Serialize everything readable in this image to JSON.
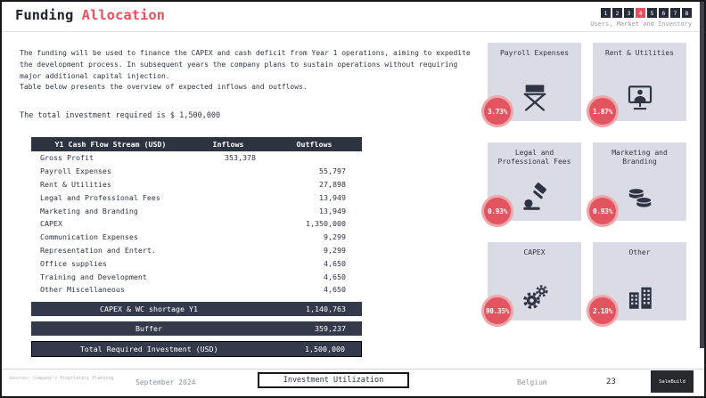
{
  "header": {
    "title_prefix": "Funding",
    "title_accent": "Allocation",
    "pages": [
      "1",
      "2",
      "3",
      "4",
      "5",
      "6",
      "7",
      "8"
    ],
    "active_page": "4",
    "section_label": "Users, Market and Inventory"
  },
  "intro": {
    "paragraph": "The funding will be used to finance the CAPEX and cash deficit from Year 1 operations, aiming to expedite the development process. In subsequent years the company plans to sustain operations without requiring major additional capital injection.",
    "paragraph2": "Table below presents the overview of expected inflows and outflows.",
    "total_line": "The total investment required is $ 1,500,000"
  },
  "table": {
    "headers": [
      "Y1 Cash Flow Stream (USD)",
      "Inflows",
      "Outflows"
    ],
    "rows": [
      {
        "label": "Gross Profit",
        "inflows": "353,378",
        "outflows": ""
      },
      {
        "label": "Payroll Expenses",
        "inflows": "",
        "outflows": "55,797"
      },
      {
        "label": "Rent & Utilities",
        "inflows": "",
        "outflows": "27,898"
      },
      {
        "label": "Legal and Professional Fees",
        "inflows": "",
        "outflows": "13,949"
      },
      {
        "label": "Marketing and Branding",
        "inflows": "",
        "outflows": "13,949"
      },
      {
        "label": "CAPEX",
        "inflows": "",
        "outflows": "1,350,000"
      },
      {
        "label": "Communication Expenses",
        "inflows": "",
        "outflows": "9,299"
      },
      {
        "label": "Representation and Entert.",
        "inflows": "",
        "outflows": "9,299"
      },
      {
        "label": "Office supplies",
        "inflows": "",
        "outflows": "4,650"
      },
      {
        "label": "Training and Development",
        "inflows": "",
        "outflows": "4,650"
      },
      {
        "label": "Other Miscellaneous",
        "inflows": "",
        "outflows": "4,650"
      }
    ],
    "summary_rows": [
      {
        "label": "CAPEX & WC shortage Y1",
        "value": "1,140,763"
      },
      {
        "label": "Buffer",
        "value": "359,237"
      },
      {
        "label": "Total Required Investment (USD)",
        "value": "1,500,000"
      }
    ]
  },
  "cards": [
    {
      "title": "Payroll Expenses",
      "percent": "3.73%",
      "icon": "director-chair"
    },
    {
      "title": "Rent & Utilities",
      "percent": "1.87%",
      "icon": "workstation"
    },
    {
      "title": "Legal and Professional Fees",
      "percent": "0.93%",
      "icon": "gavel"
    },
    {
      "title": "Marketing and Branding",
      "percent": "0.93%",
      "icon": "coins"
    },
    {
      "title": "CAPEX",
      "percent": "90.35%",
      "icon": "gears"
    },
    {
      "title": "Other",
      "percent": "2.18%",
      "icon": "buildings"
    }
  ],
  "footer": {
    "source_note": "Sources: Company's Proprietary Planning",
    "date": "September 2024",
    "section_tab": "Investment Utilization",
    "country": "Belgium",
    "page_number": "23",
    "logo_text": "SaleBuild"
  },
  "colors": {
    "accent_red": "#e25560",
    "dark_navy": "#2e3342",
    "card_bg": "#d9dce4"
  }
}
